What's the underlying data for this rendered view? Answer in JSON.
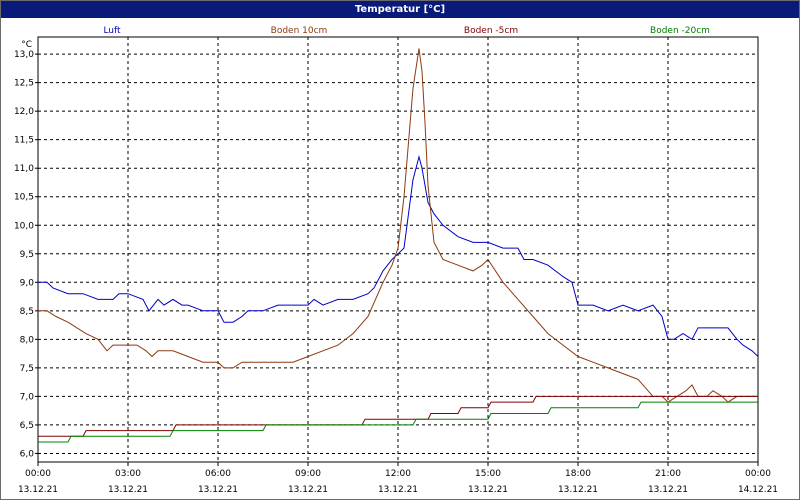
{
  "window": {
    "title": "Temperatur [°C]"
  },
  "chart_data": {
    "type": "line",
    "title": "Temperatur [°C]",
    "ylabel": "°C",
    "ylim": [
      5.85,
      13.3
    ],
    "yticks": [
      "6,0",
      "6,5",
      "7,0",
      "7,5",
      "8,0",
      "8,5",
      "9,0",
      "9,5",
      "10,0",
      "10,5",
      "11,0",
      "11,5",
      "12,0",
      "12,5",
      "13,0"
    ],
    "xlim": [
      0,
      24
    ],
    "xticks": [
      {
        "t": 0,
        "time": "00:00",
        "date": "13.12.21"
      },
      {
        "t": 3,
        "time": "03:00",
        "date": "13.12.21"
      },
      {
        "t": 6,
        "time": "06:00",
        "date": "13.12.21"
      },
      {
        "t": 9,
        "time": "09:00",
        "date": "13.12.21"
      },
      {
        "t": 12,
        "time": "12:00",
        "date": "13.12.21"
      },
      {
        "t": 15,
        "time": "15:00",
        "date": "13.12.21"
      },
      {
        "t": 18,
        "time": "18:00",
        "date": "13.12.21"
      },
      {
        "t": 21,
        "time": "21:00",
        "date": "13.12.21"
      },
      {
        "t": 24,
        "time": "00:00",
        "date": "14.12.21"
      }
    ],
    "grid": true,
    "legend_position": "top",
    "series": [
      {
        "name": "Luft",
        "color": "#0000c8",
        "x": [
          0,
          0.3,
          0.5,
          1,
          1.5,
          2,
          2.5,
          2.7,
          3,
          3.5,
          3.7,
          4,
          4.2,
          4.5,
          4.8,
          5,
          5.5,
          6,
          6.2,
          6.5,
          6.8,
          7,
          7.5,
          8,
          8.5,
          9,
          9.2,
          9.5,
          10,
          10.5,
          11,
          11.2,
          11.5,
          11.8,
          12,
          12.2,
          12.5,
          12.7,
          12.8,
          13,
          13.2,
          13.5,
          14,
          14.5,
          15,
          15.5,
          16,
          16.2,
          16.5,
          17,
          17.5,
          17.8,
          18,
          18.5,
          19,
          19.5,
          20,
          20.5,
          20.8,
          21,
          21.2,
          21.5,
          21.8,
          22,
          22.5,
          23,
          23.3,
          23.5,
          23.8,
          24
        ],
        "y": [
          9.0,
          9.0,
          8.9,
          8.8,
          8.8,
          8.7,
          8.7,
          8.8,
          8.8,
          8.7,
          8.5,
          8.7,
          8.6,
          8.7,
          8.6,
          8.6,
          8.5,
          8.5,
          8.3,
          8.3,
          8.4,
          8.5,
          8.5,
          8.6,
          8.6,
          8.6,
          8.7,
          8.6,
          8.7,
          8.7,
          8.8,
          8.9,
          9.2,
          9.4,
          9.5,
          9.6,
          10.8,
          11.2,
          11.0,
          10.4,
          10.2,
          10.0,
          9.8,
          9.7,
          9.7,
          9.6,
          9.6,
          9.4,
          9.4,
          9.3,
          9.1,
          9.0,
          8.6,
          8.6,
          8.5,
          8.6,
          8.5,
          8.6,
          8.4,
          8.0,
          8.0,
          8.1,
          8.0,
          8.2,
          8.2,
          8.2,
          8.0,
          7.9,
          7.8,
          7.7
        ]
      },
      {
        "name": "Boden 10cm",
        "color": "#8b3a0f",
        "x": [
          0,
          0.3,
          0.6,
          1,
          1.3,
          1.6,
          2,
          2.3,
          2.5,
          2.8,
          3,
          3.3,
          3.6,
          3.8,
          4,
          4.5,
          5,
          5.5,
          6,
          6.2,
          6.5,
          6.8,
          7,
          7.5,
          8,
          8.5,
          9,
          9.5,
          10,
          10.5,
          11,
          11.5,
          11.8,
          12,
          12.2,
          12.5,
          12.7,
          12.8,
          12.9,
          13,
          13.2,
          13.5,
          14,
          14.5,
          14.8,
          15,
          15.5,
          16,
          16.5,
          17,
          17.5,
          18,
          18.5,
          19,
          19.5,
          20,
          20.5,
          20.8,
          21,
          21.3,
          21.6,
          21.8,
          22,
          22.3,
          22.5,
          22.8,
          23,
          23.3,
          23.5,
          23.8,
          24
        ],
        "y": [
          8.5,
          8.5,
          8.4,
          8.3,
          8.2,
          8.1,
          8.0,
          7.8,
          7.9,
          7.9,
          7.9,
          7.9,
          7.8,
          7.7,
          7.8,
          7.8,
          7.7,
          7.6,
          7.6,
          7.5,
          7.5,
          7.6,
          7.6,
          7.6,
          7.6,
          7.6,
          7.7,
          7.8,
          7.9,
          8.1,
          8.4,
          9.0,
          9.3,
          9.6,
          10.5,
          12.4,
          13.1,
          12.7,
          11.8,
          10.7,
          9.7,
          9.4,
          9.3,
          9.2,
          9.3,
          9.4,
          9.0,
          8.7,
          8.4,
          8.1,
          7.9,
          7.7,
          7.6,
          7.5,
          7.4,
          7.3,
          7.0,
          7.0,
          6.9,
          7.0,
          7.1,
          7.2,
          7.0,
          7.0,
          7.1,
          7.0,
          6.9,
          7.0,
          7.0,
          7.0,
          7.0
        ]
      },
      {
        "name": "Boden -5cm",
        "color": "#800000",
        "x": [
          0,
          1.5,
          1.6,
          4.5,
          4.6,
          9,
          10.8,
          10.9,
          13,
          13.1,
          14,
          14.1,
          15,
          15.1,
          16.5,
          16.6,
          24
        ],
        "y": [
          6.3,
          6.3,
          6.4,
          6.4,
          6.5,
          6.5,
          6.5,
          6.6,
          6.6,
          6.7,
          6.7,
          6.8,
          6.8,
          6.9,
          6.9,
          7.0,
          7.0
        ]
      },
      {
        "name": "Boden -20cm",
        "color": "#008000",
        "x": [
          0,
          1,
          1.1,
          4.4,
          4.5,
          7.5,
          7.6,
          12.5,
          12.6,
          15,
          15.1,
          17,
          17.1,
          20,
          20.1,
          24
        ],
        "y": [
          6.2,
          6.2,
          6.3,
          6.3,
          6.4,
          6.4,
          6.5,
          6.5,
          6.6,
          6.6,
          6.7,
          6.7,
          6.8,
          6.8,
          6.9,
          6.9
        ]
      }
    ]
  }
}
